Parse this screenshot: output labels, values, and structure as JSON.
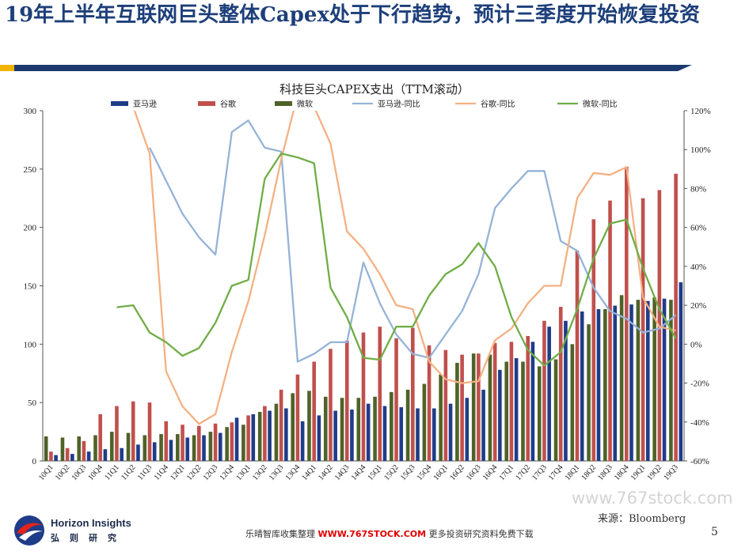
{
  "slide": {
    "title": "19年上半年互联网巨头整体Capex处于下行趋势，预计三季度开始恢复投资",
    "source": "来源：Bloomberg",
    "watermark": "www.767stock.com",
    "footer_left": "乐晴智库收集整理 ",
    "footer_site": "WWW.767STOCK.COM",
    "footer_right": " 更多投资研究资料免费下载",
    "page_number": "5",
    "logo_en": "Horizon Insights",
    "logo_cn": "弘则研究"
  },
  "colors": {
    "header_bar": "#1d3a6e",
    "header_accent": "#f2b400",
    "title_text": "#1d3f7a"
  },
  "chart_data": {
    "type": "bar",
    "title": "科技巨头CAPEX支出（TTM滚动）",
    "categories": [
      "10Q1",
      "10Q2",
      "10Q3",
      "10Q4",
      "11Q1",
      "11Q2",
      "11Q3",
      "11Q4",
      "12Q1",
      "12Q2",
      "12Q3",
      "12Q4",
      "13Q1",
      "13Q2",
      "13Q3",
      "13Q4",
      "14Q1",
      "14Q2",
      "14Q3",
      "14Q4",
      "15Q1",
      "15Q2",
      "15Q3",
      "15Q4",
      "16Q1",
      "16Q2",
      "16Q3",
      "16Q4",
      "17Q1",
      "17Q2",
      "17Q3",
      "17Q4",
      "18Q1",
      "18Q2",
      "18Q3",
      "18Q4",
      "19Q1",
      "19Q2",
      "19Q3"
    ],
    "ylim": [
      0,
      300
    ],
    "y2lim": [
      -60,
      120
    ],
    "yticks": [
      0,
      50,
      100,
      150,
      200,
      250,
      300
    ],
    "y2ticks": [
      "-60%",
      "-40%",
      "-20%",
      "0%",
      "20%",
      "40%",
      "60%",
      "80%",
      "100%",
      "120%"
    ],
    "legend_position": "top",
    "grid": false,
    "series": [
      {
        "name": "亚马逊",
        "kind": "bar",
        "axis": "left",
        "color": "#1f3c88",
        "values": [
          5,
          6,
          8,
          10,
          11,
          14,
          16,
          18,
          20,
          22,
          24,
          37,
          40,
          43,
          45,
          34,
          39,
          43,
          44,
          49,
          47,
          46,
          45,
          45,
          49,
          54,
          61,
          78,
          88,
          102,
          115,
          120,
          128,
          130,
          133,
          134,
          137,
          139,
          153
        ]
      },
      {
        "name": "谷歌",
        "kind": "bar",
        "axis": "left",
        "color": "#c0504d",
        "values": [
          8,
          11,
          17,
          40,
          47,
          51,
          50,
          34,
          31,
          30,
          32,
          33,
          39,
          47,
          61,
          74,
          85,
          96,
          103,
          110,
          115,
          105,
          114,
          99,
          95,
          91,
          92,
          101,
          102,
          107,
          120,
          132,
          180,
          207,
          223,
          252,
          225,
          232,
          246
        ]
      },
      {
        "name": "微软",
        "kind": "bar",
        "axis": "left",
        "color": "#4f6228",
        "values": [
          21,
          20,
          21,
          22,
          25,
          24,
          22,
          23,
          23,
          22,
          25,
          29,
          31,
          42,
          49,
          58,
          60,
          55,
          54,
          54,
          55,
          59,
          61,
          66,
          74,
          84,
          92,
          91,
          85,
          85,
          81,
          87,
          100,
          117,
          130,
          142,
          138,
          140,
          138
        ]
      },
      {
        "name": "亚马逊-同比",
        "kind": "line",
        "axis": "right",
        "color": "#95b3d7",
        "values": [
          null,
          null,
          null,
          null,
          null,
          null,
          101,
          84,
          67,
          55,
          46,
          109,
          115,
          101,
          99,
          -9,
          -5,
          1,
          1,
          42,
          21,
          5,
          -5,
          -7,
          5,
          17,
          36,
          70,
          80,
          89,
          89,
          53,
          48,
          29,
          17,
          13,
          6,
          8,
          15
        ]
      },
      {
        "name": "谷歌-同比",
        "kind": "line",
        "axis": "right",
        "color": "#f4b183",
        "values": [
          null,
          null,
          null,
          null,
          null,
          122,
          98,
          -14,
          -32,
          -41,
          -36,
          -4,
          22,
          56,
          95,
          128,
          122,
          103,
          58,
          49,
          36,
          20,
          18,
          -9,
          -18,
          -20,
          -19,
          2,
          8,
          21,
          30,
          30,
          75,
          88,
          87,
          91,
          24,
          9,
          7
        ]
      },
      {
        "name": "微软-同比",
        "kind": "line",
        "axis": "right",
        "color": "#70ad47",
        "values": [
          null,
          null,
          null,
          null,
          19,
          20,
          6,
          1,
          -6,
          -2,
          11,
          30,
          33,
          85,
          98,
          96,
          93,
          29,
          14,
          -7,
          -8,
          9,
          9,
          25,
          36,
          41,
          52,
          40,
          14,
          -3,
          -11,
          -4,
          18,
          44,
          62,
          64,
          39,
          18,
          3
        ]
      }
    ]
  }
}
